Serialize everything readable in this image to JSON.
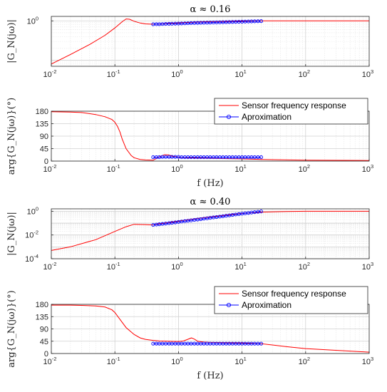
{
  "chart_data": [
    {
      "type": "line",
      "title": "α ≈ 0.16",
      "ylabel": "|G_N(jω)|",
      "xlabel": "",
      "xscale": "log",
      "yscale": "log",
      "xlim": [
        0.01,
        1000
      ],
      "ylim": [
        0.07,
        1.3
      ],
      "grid": true,
      "x_ticks": [
        {
          "base": "10",
          "exp": "-2"
        },
        {
          "base": "10",
          "exp": "-1"
        },
        {
          "base": "10",
          "exp": "0"
        },
        {
          "base": "10",
          "exp": "1"
        },
        {
          "base": "10",
          "exp": "2"
        },
        {
          "base": "10",
          "exp": "3"
        }
      ],
      "y_ticks": [
        {
          "base": "10",
          "exp": "0",
          "value": 1
        }
      ],
      "series": [
        {
          "color": "#ff0000",
          "marker": "none",
          "x": [
            0.01,
            0.02,
            0.04,
            0.07,
            0.1,
            0.13,
            0.15,
            0.17,
            0.2,
            0.25,
            0.3,
            0.4,
            0.5,
            0.7,
            1,
            2,
            5,
            10,
            20,
            50,
            100,
            1000
          ],
          "y": [
            0.08,
            0.14,
            0.25,
            0.43,
            0.66,
            0.95,
            1.12,
            1.1,
            0.98,
            0.88,
            0.84,
            0.82,
            0.83,
            0.86,
            0.89,
            0.94,
            0.97,
            0.99,
            1.0,
            1.0,
            1.0,
            1.0
          ]
        },
        {
          "color": "#0000ff",
          "marker": "circle",
          "x": [
            0.4,
            0.45,
            0.5,
            0.56,
            0.63,
            0.71,
            0.79,
            0.89,
            1,
            1.12,
            1.26,
            1.41,
            1.58,
            1.78,
            2,
            2.24,
            2.51,
            2.82,
            3.16,
            3.55,
            3.98,
            4.47,
            5.01,
            5.62,
            6.31,
            7.08,
            7.94,
            8.91,
            10,
            11.2,
            12.6,
            14.1,
            15.8,
            17.8,
            20
          ],
          "y": [
            0.82,
            0.822,
            0.825,
            0.83,
            0.835,
            0.84,
            0.845,
            0.85,
            0.855,
            0.86,
            0.865,
            0.87,
            0.875,
            0.88,
            0.885,
            0.89,
            0.895,
            0.9,
            0.905,
            0.91,
            0.915,
            0.92,
            0.925,
            0.93,
            0.935,
            0.94,
            0.945,
            0.95,
            0.955,
            0.96,
            0.965,
            0.97,
            0.975,
            0.98,
            0.985
          ]
        }
      ]
    },
    {
      "type": "line",
      "title": "",
      "ylabel": "arg{G_N(jω)}(°)",
      "xlabel": "f (Hz)",
      "xscale": "log",
      "yscale": "linear",
      "xlim": [
        0.01,
        1000
      ],
      "ylim": [
        0,
        180
      ],
      "grid": true,
      "legend_position": "top-right",
      "x_ticks": [
        {
          "base": "10",
          "exp": "-2"
        },
        {
          "base": "10",
          "exp": "-1"
        },
        {
          "base": "10",
          "exp": "0"
        },
        {
          "base": "10",
          "exp": "1"
        },
        {
          "base": "10",
          "exp": "2"
        },
        {
          "base": "10",
          "exp": "3"
        }
      ],
      "y_ticks": [
        {
          "label": "0",
          "value": 0
        },
        {
          "label": "45",
          "value": 45
        },
        {
          "label": "90",
          "value": 90
        },
        {
          "label": "135",
          "value": 135
        },
        {
          "label": "180",
          "value": 180
        }
      ],
      "series": [
        {
          "name": "Sensor frequency response",
          "color": "#ff0000",
          "marker": "none",
          "x": [
            0.01,
            0.02,
            0.03,
            0.05,
            0.07,
            0.09,
            0.1,
            0.11,
            0.12,
            0.13,
            0.15,
            0.18,
            0.2,
            0.25,
            0.3,
            0.4,
            0.5,
            0.6,
            0.7,
            0.8,
            1,
            2,
            5,
            10,
            20,
            100,
            1000
          ],
          "y": [
            178,
            177,
            175,
            168,
            160,
            150,
            140,
            125,
            105,
            80,
            45,
            20,
            12,
            6,
            4,
            3,
            15,
            23,
            22,
            18,
            14,
            11,
            9,
            8,
            6,
            3,
            2
          ]
        },
        {
          "name": "Aproximation",
          "color": "#0000ff",
          "marker": "circle",
          "x": [
            0.4,
            0.45,
            0.5,
            0.56,
            0.63,
            0.71,
            0.79,
            0.89,
            1,
            1.12,
            1.26,
            1.41,
            1.58,
            1.78,
            2,
            2.24,
            2.51,
            2.82,
            3.16,
            3.55,
            3.98,
            4.47,
            5.01,
            5.62,
            6.31,
            7.08,
            7.94,
            8.91,
            10,
            11.2,
            12.6,
            14.1,
            15.8,
            17.8,
            20
          ],
          "y": [
            14,
            14,
            14,
            15,
            15,
            15,
            15,
            15,
            15,
            14,
            14,
            14,
            14,
            14,
            14,
            14,
            14,
            14,
            14,
            14,
            14,
            14,
            14,
            14,
            14,
            14,
            14,
            14,
            14,
            14,
            14,
            14,
            14,
            14,
            14
          ]
        }
      ]
    },
    {
      "type": "line",
      "title": "α ≈ 0.40",
      "ylabel": "|G_N(jω)|",
      "xlabel": "",
      "xscale": "log",
      "yscale": "log",
      "xlim": [
        0.01,
        1000
      ],
      "ylim": [
        0.0001,
        1.6
      ],
      "grid": true,
      "x_ticks": [
        {
          "base": "10",
          "exp": "-2"
        },
        {
          "base": "10",
          "exp": "-1"
        },
        {
          "base": "10",
          "exp": "0"
        },
        {
          "base": "10",
          "exp": "1"
        },
        {
          "base": "10",
          "exp": "2"
        },
        {
          "base": "10",
          "exp": "3"
        }
      ],
      "y_ticks": [
        {
          "base": "10",
          "exp": "-4",
          "value": 0.0001
        },
        {
          "base": "10",
          "exp": "-2",
          "value": 0.01
        },
        {
          "base": "10",
          "exp": "0",
          "value": 1
        }
      ],
      "series": [
        {
          "color": "#ff0000",
          "marker": "none",
          "x": [
            0.01,
            0.02,
            0.05,
            0.1,
            0.15,
            0.2,
            0.3,
            0.4,
            0.5,
            0.7,
            1,
            2,
            5,
            10,
            20,
            50,
            100,
            1000
          ],
          "y": [
            0.0005,
            0.001,
            0.004,
            0.02,
            0.05,
            0.08,
            0.075,
            0.07,
            0.09,
            0.11,
            0.15,
            0.25,
            0.45,
            0.65,
            0.85,
            0.95,
            1.0,
            1.0
          ]
        },
        {
          "color": "#0000ff",
          "marker": "circle",
          "x": [
            0.4,
            0.45,
            0.5,
            0.56,
            0.63,
            0.71,
            0.79,
            0.89,
            1,
            1.12,
            1.26,
            1.41,
            1.58,
            1.78,
            2,
            2.24,
            2.51,
            2.82,
            3.16,
            3.55,
            3.98,
            4.47,
            5.01,
            5.62,
            6.31,
            7.08,
            7.94,
            8.91,
            10,
            11.2,
            12.6,
            14.1,
            15.8,
            17.8,
            20
          ],
          "y": [
            0.07,
            0.075,
            0.08,
            0.085,
            0.092,
            0.1,
            0.107,
            0.115,
            0.125,
            0.135,
            0.145,
            0.158,
            0.17,
            0.185,
            0.2,
            0.215,
            0.235,
            0.255,
            0.275,
            0.3,
            0.325,
            0.35,
            0.38,
            0.41,
            0.45,
            0.49,
            0.53,
            0.57,
            0.62,
            0.67,
            0.72,
            0.78,
            0.84,
            0.9,
            0.96
          ]
        }
      ]
    },
    {
      "type": "line",
      "title": "",
      "ylabel": "arg{G_N(jω)}(°)",
      "xlabel": "f (Hz)",
      "xscale": "log",
      "yscale": "linear",
      "xlim": [
        0.01,
        1000
      ],
      "ylim": [
        0,
        180
      ],
      "grid": true,
      "legend_position": "top-right",
      "x_ticks": [
        {
          "base": "10",
          "exp": "-2"
        },
        {
          "base": "10",
          "exp": "-1"
        },
        {
          "base": "10",
          "exp": "0"
        },
        {
          "base": "10",
          "exp": "1"
        },
        {
          "base": "10",
          "exp": "2"
        },
        {
          "base": "10",
          "exp": "3"
        }
      ],
      "y_ticks": [
        {
          "label": "0",
          "value": 0
        },
        {
          "label": "45",
          "value": 45
        },
        {
          "label": "90",
          "value": 90
        },
        {
          "label": "135",
          "value": 135
        },
        {
          "label": "180",
          "value": 180
        }
      ],
      "series": [
        {
          "name": "Sensor frequency response",
          "color": "#ff0000",
          "marker": "none",
          "x": [
            0.01,
            0.02,
            0.03,
            0.05,
            0.07,
            0.09,
            0.1,
            0.12,
            0.15,
            0.2,
            0.25,
            0.3,
            0.4,
            0.5,
            0.7,
            1,
            1.2,
            1.4,
            1.6,
            1.8,
            2,
            2.5,
            3,
            5,
            10,
            20,
            50,
            100,
            1000
          ],
          "y": [
            177,
            177,
            176,
            174,
            170,
            160,
            150,
            125,
            95,
            70,
            57,
            52,
            48,
            46,
            45,
            44,
            46,
            52,
            57,
            52,
            45,
            42,
            41,
            40,
            39,
            36,
            25,
            18,
            5
          ]
        },
        {
          "name": "Aproximation",
          "color": "#0000ff",
          "marker": "circle",
          "x": [
            0.4,
            0.45,
            0.5,
            0.56,
            0.63,
            0.71,
            0.79,
            0.89,
            1,
            1.12,
            1.26,
            1.41,
            1.58,
            1.78,
            2,
            2.24,
            2.51,
            2.82,
            3.16,
            3.55,
            3.98,
            4.47,
            5.01,
            5.62,
            6.31,
            7.08,
            7.94,
            8.91,
            10,
            11.2,
            12.6,
            14.1,
            15.8,
            17.8,
            20
          ],
          "y": [
            36,
            36,
            36,
            36,
            36,
            36,
            36,
            36,
            36,
            36,
            36,
            36,
            36,
            36,
            36,
            36,
            36,
            36,
            36,
            36,
            36,
            36,
            36,
            36,
            36,
            36,
            36,
            36,
            36,
            36,
            36,
            36,
            36,
            36,
            36
          ]
        }
      ]
    }
  ]
}
